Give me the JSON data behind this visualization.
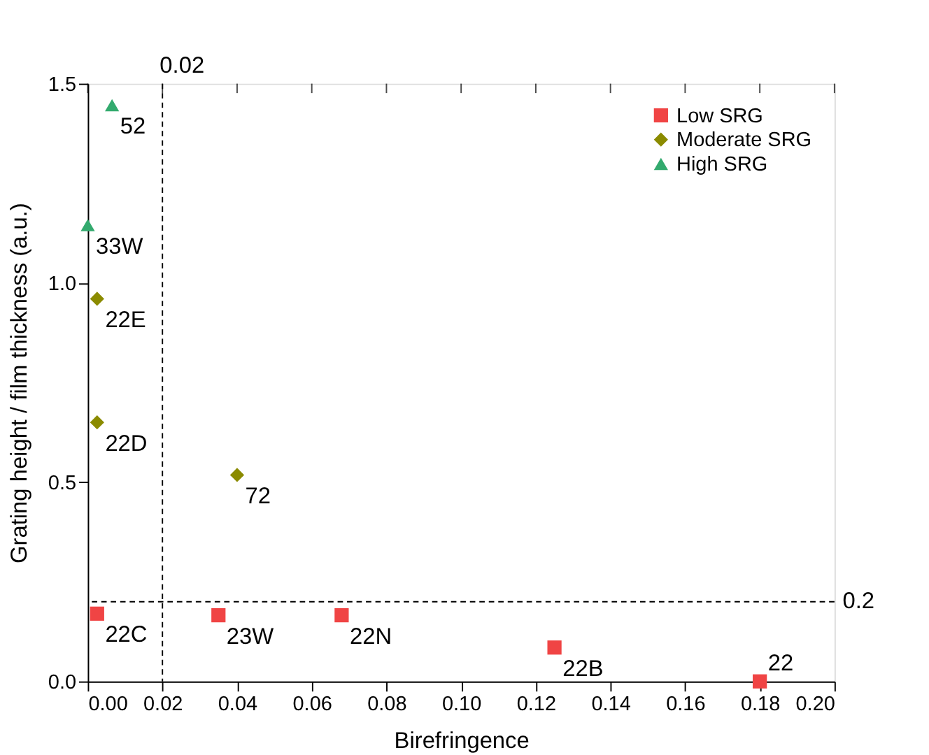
{
  "chart_data": {
    "type": "scatter",
    "xlabel": "Birefringence",
    "ylabel": "Grating height / film thickness (a.u.)",
    "xlim": [
      0,
      0.2
    ],
    "ylim": [
      0,
      1.5
    ],
    "xticks": [
      {
        "value": 0,
        "label": "0.00"
      },
      0.02,
      0.04,
      0.06,
      0.08,
      {
        "value": 0.1,
        "label": "0.10"
      },
      0.12,
      0.14,
      0.16,
      0.18,
      {
        "value": 0.2,
        "label": "0.20"
      }
    ],
    "yticks": [
      {
        "value": 0,
        "label": "0.0"
      },
      0.5,
      {
        "value": 1,
        "label": "1.0"
      },
      1.5
    ],
    "grid": false,
    "legend": "top right",
    "series": [
      {
        "name": "Low SRG",
        "color": "#f04444",
        "marker": "square",
        "x": [
          0.0025,
          0.035,
          0.068,
          0.125,
          0.18
        ],
        "values": [
          0.17,
          0.166,
          0.166,
          0.085,
          0.0
        ]
      },
      {
        "name": "Moderate SRG",
        "color": "#8b8b00",
        "marker": "diamond",
        "x": [
          0.0025,
          0.0025,
          0.04
        ],
        "values": [
          0.96,
          0.65,
          0.518
        ]
      },
      {
        "name": "High SRG",
        "color": "#33aa6e",
        "marker": "triangle",
        "x": [
          0.0,
          0.0065
        ],
        "values": [
          1.145,
          1.446
        ]
      }
    ],
    "ref_lines": [
      {
        "axis": "x",
        "value": 0.02,
        "label": "0.02",
        "line_style": "dashed"
      },
      {
        "axis": "y",
        "value": 0.2,
        "label": "0.2",
        "line_style": "dashed"
      }
    ],
    "annotations": [
      {
        "text": "22C",
        "x": 0.0025,
        "y": 0.17
      },
      {
        "text": "23W",
        "x": 0.035,
        "y": 0.166
      },
      {
        "text": "22N",
        "x": 0.068,
        "y": 0.166
      },
      {
        "text": "22B",
        "x": 0.125,
        "y": 0.085
      },
      {
        "text": "22",
        "x": 0.18,
        "y": 0.0
      },
      {
        "text": "22E",
        "x": 0.0025,
        "y": 0.96
      },
      {
        "text": "22D",
        "x": 0.0025,
        "y": 0.65
      },
      {
        "text": "72",
        "x": 0.04,
        "y": 0.518
      },
      {
        "text": "33W",
        "x": 0.0,
        "y": 1.145
      },
      {
        "text": "52",
        "x": 0.0065,
        "y": 1.446
      }
    ]
  }
}
